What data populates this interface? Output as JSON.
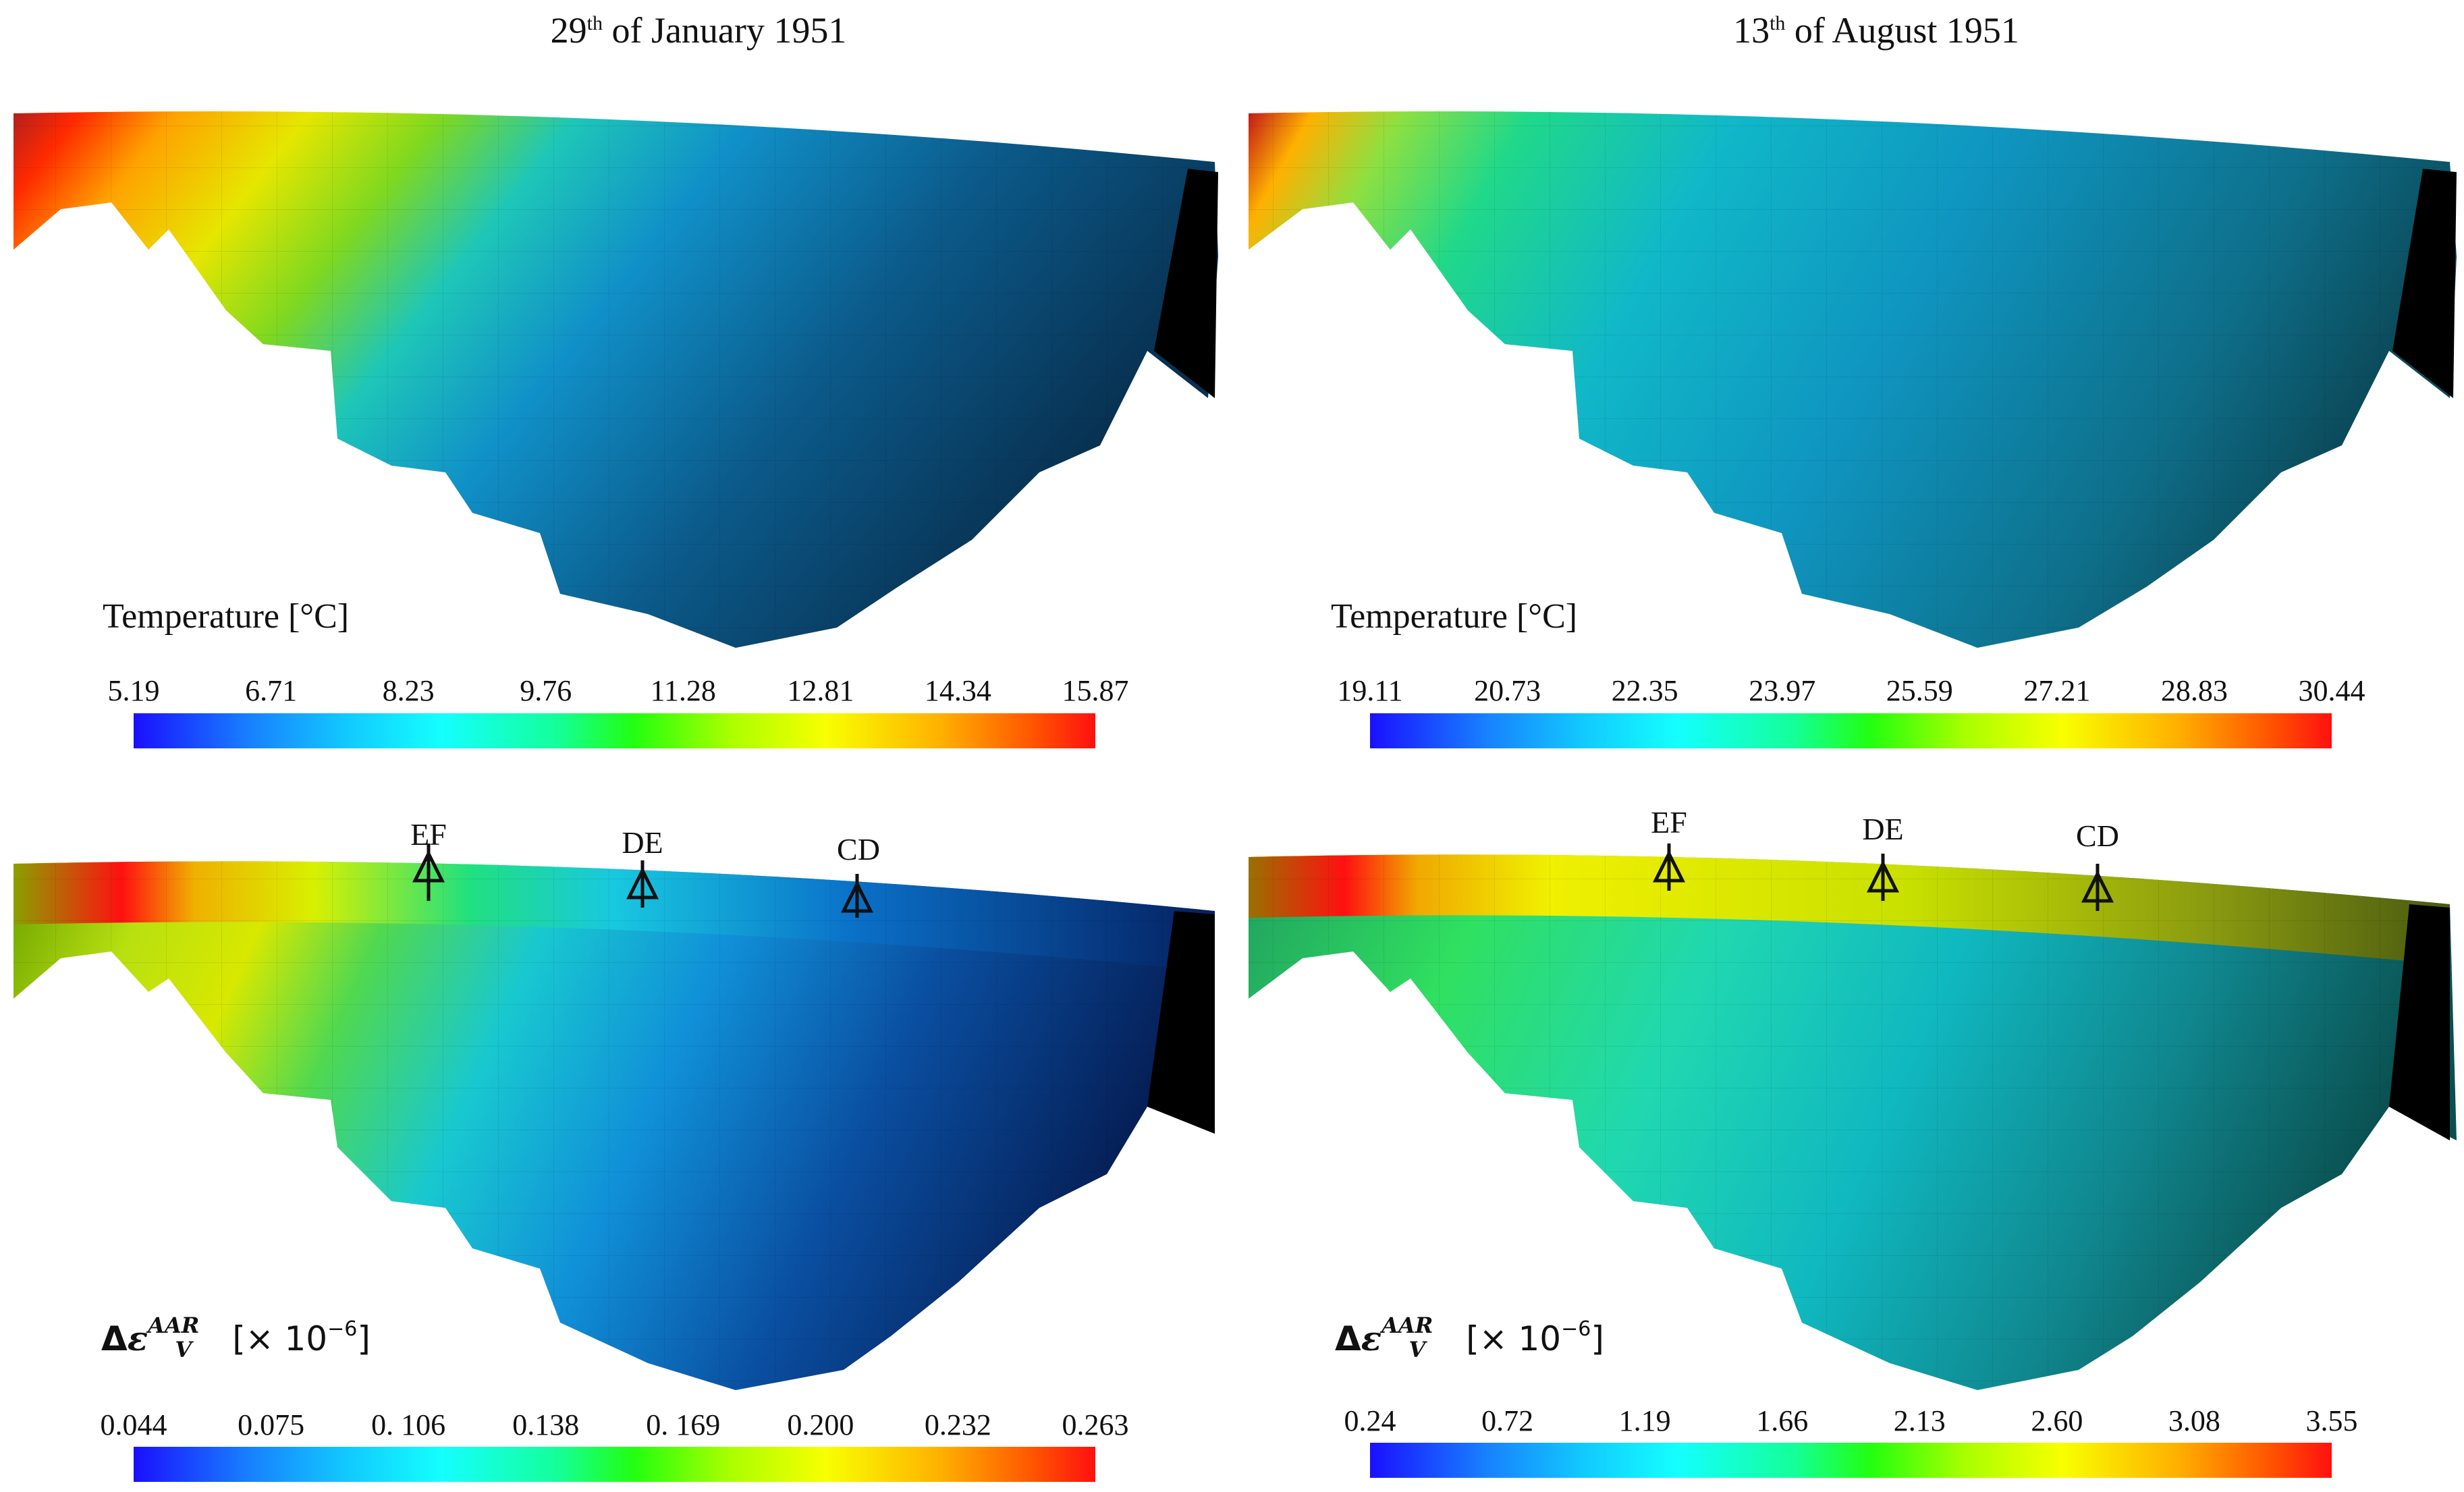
{
  "panels": {
    "left_title_main": "29",
    "left_title_sup": "th",
    "left_title_rest": "of January 1951",
    "right_title_main": "13",
    "right_title_sup": "th",
    "right_title_rest": "of August 1951"
  },
  "temperature": {
    "label": "Temperature [°C]",
    "left_ticks": [
      "5.19",
      "6.71",
      "8.23",
      "9.76",
      "11.28",
      "12.81",
      "14.34",
      "15.87"
    ],
    "right_ticks": [
      "19.11",
      "20.73",
      "22.35",
      "23.97",
      "25.59",
      "27.21",
      "28.83",
      "30.44"
    ]
  },
  "strain": {
    "label_delta": "Δ",
    "label_eps": "ε",
    "label_sup": "AAR",
    "label_sub": "V",
    "label_unit": "[× 10",
    "label_exp": "−6",
    "label_close": "]",
    "left_ticks": [
      "0.044",
      "0.075",
      "0. 106",
      "0.138",
      "0. 169",
      "0.200",
      "0.232",
      "0.263"
    ],
    "right_ticks": [
      "0.24",
      "0.72",
      "1.19",
      "1.66",
      "2.13",
      "2.60",
      "3.08",
      "3.55"
    ]
  },
  "sections": [
    "EF",
    "DE",
    "CD"
  ],
  "colors": {
    "low": "#1a10ff",
    "mid": "#22ff10",
    "high": "#ff1010",
    "mesh_dark": "#0a2a55",
    "black_face": "#000000"
  }
}
